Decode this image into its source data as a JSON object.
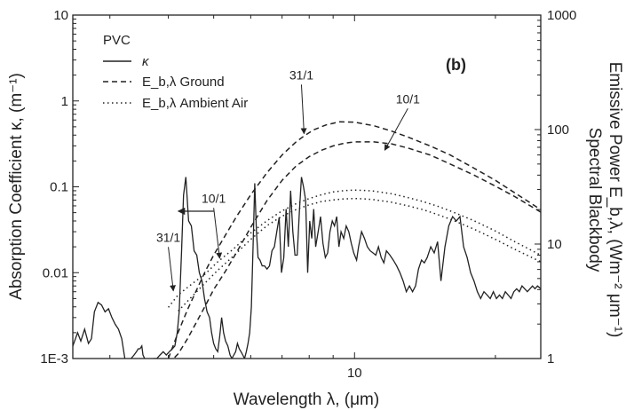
{
  "chart_data": {
    "type": "line",
    "panel_label": "(b)",
    "xlabel": "Wavelength λ, (μm)",
    "ylabel_left": "Absorption Coefficient κ, (m⁻¹)",
    "ylabel_right_line1": "Spectral Blackbody",
    "ylabel_right_line2": "Emissive Power E_b,λ, (Wm⁻² μm⁻¹)",
    "x_scale": "log",
    "xlim": [
      2.5,
      25
    ],
    "xticks": [
      {
        "value": 10,
        "label": "10"
      }
    ],
    "y_left_scale": "log",
    "y_left_lim": [
      0.001,
      10
    ],
    "y_left_ticks": [
      {
        "value": 0.001,
        "label": "1E-3"
      },
      {
        "value": 0.01,
        "label": "0.01"
      },
      {
        "value": 0.1,
        "label": "0.1"
      },
      {
        "value": 1,
        "label": "1"
      },
      {
        "value": 10,
        "label": "10"
      }
    ],
    "y_right_scale": "log",
    "y_right_lim": [
      1,
      1000
    ],
    "y_right_ticks": [
      {
        "value": 1,
        "label": "1"
      },
      {
        "value": 10,
        "label": "10"
      },
      {
        "value": 100,
        "label": "100"
      },
      {
        "value": 1000,
        "label": "1000"
      }
    ],
    "legend": {
      "title": "PVC",
      "placement": "top-left",
      "entries": [
        {
          "label": "κ",
          "style": "solid"
        },
        {
          "label": "E_b,λ Ground",
          "style": "dashed"
        },
        {
          "label": "E_b,λ Ambient Air",
          "style": "dotted"
        }
      ]
    },
    "annotations": [
      {
        "text": "31/1",
        "series": "E_b,λ Ground",
        "label_at": [
          7.7,
          275
        ],
        "arrow_to": [
          7.8,
          92
        ]
      },
      {
        "text": "10/1",
        "series": "E_b,λ Ground",
        "label_at": [
          13.0,
          170
        ],
        "arrow_to": [
          11.6,
          66
        ]
      },
      {
        "text": "10/1",
        "series": "E_b,λ Ambient Air",
        "label_at": [
          5.0,
          23
        ],
        "arrow_to": [
          5.15,
          7.5
        ]
      },
      {
        "text": "31/1",
        "series": "E_b,λ Ambient Air",
        "label_at": [
          4.0,
          10.5
        ],
        "arrow_to": [
          4.1,
          3.9
        ]
      }
    ],
    "arrow_left": {
      "points_to": "left axis",
      "from": [
        5.0,
        0.052
      ],
      "to": [
        4.2,
        0.052
      ]
    },
    "series": [
      {
        "name": "κ",
        "axis": "left",
        "style": "solid",
        "x": [
          2.5,
          2.56,
          2.6,
          2.65,
          2.7,
          2.74,
          2.78,
          2.83,
          2.88,
          2.93,
          2.98,
          3.03,
          3.08,
          3.13,
          3.18,
          3.23,
          3.28,
          3.33,
          3.38,
          3.42,
          3.45,
          3.48,
          3.51,
          3.53,
          3.56,
          3.59,
          3.62,
          3.66,
          3.72,
          3.78,
          3.84,
          3.9,
          3.96,
          4.02,
          4.08,
          4.13,
          4.18,
          4.22,
          4.27,
          4.31,
          4.36,
          4.42,
          4.48,
          4.54,
          4.6,
          4.66,
          4.72,
          4.78,
          4.84,
          4.9,
          4.95,
          5.0,
          5.05,
          5.1,
          5.15,
          5.2,
          5.25,
          5.3,
          5.36,
          5.42,
          5.47,
          5.52,
          5.57,
          5.62,
          5.67,
          5.72,
          5.77,
          5.82,
          5.87,
          5.92,
          5.97,
          6.02,
          6.07,
          6.12,
          6.17,
          6.22,
          6.28,
          6.35,
          6.42,
          6.5,
          6.58,
          6.66,
          6.74,
          6.82,
          6.9,
          6.98,
          7.06,
          7.14,
          7.22,
          7.3,
          7.38,
          7.46,
          7.54,
          7.62,
          7.7,
          7.78,
          7.86,
          7.94,
          8.02,
          8.1,
          8.18,
          8.26,
          8.36,
          8.46,
          8.56,
          8.66,
          8.76,
          8.86,
          8.96,
          9.06,
          9.16,
          9.26,
          9.36,
          9.48,
          9.6,
          9.72,
          9.84,
          9.96,
          10.1,
          10.2,
          10.35,
          10.5,
          10.65,
          10.8,
          10.95,
          11.1,
          11.25,
          11.4,
          11.55,
          11.7,
          11.9,
          12.1,
          12.3,
          12.5,
          12.7,
          12.9,
          13.1,
          13.3,
          13.5,
          13.7,
          13.9,
          14.1,
          14.3,
          14.55,
          14.8,
          15.05,
          15.3,
          15.6,
          15.9,
          16.2,
          16.5,
          16.8,
          17.1,
          17.4,
          17.7,
          18.0,
          18.3,
          18.6,
          18.9,
          19.2,
          19.5,
          19.8,
          20.1,
          20.4,
          20.7,
          21.0,
          21.3,
          21.6,
          21.9,
          22.2,
          22.5,
          22.8,
          23.1,
          23.4,
          23.7,
          24.0,
          24.3,
          24.6,
          25.0
        ],
        "y": [
          0.0014,
          0.002,
          0.0016,
          0.0022,
          0.0015,
          0.0017,
          0.0035,
          0.0045,
          0.0042,
          0.0035,
          0.0038,
          0.003,
          0.0025,
          0.0022,
          0.0017,
          0.001,
          0.0009,
          0.001,
          0.0011,
          0.0012,
          0.0013,
          0.0013,
          0.0014,
          0.0011,
          0.001,
          0.0009,
          0.0009,
          0.0009,
          0.001,
          0.001,
          0.0011,
          0.0012,
          0.0011,
          0.0012,
          0.0013,
          0.0014,
          0.002,
          0.0035,
          0.018,
          0.08,
          0.13,
          0.04,
          0.035,
          0.018,
          0.016,
          0.01,
          0.008,
          0.005,
          0.0035,
          0.003,
          0.002,
          0.0015,
          0.0013,
          0.0012,
          0.0018,
          0.003,
          0.002,
          0.0016,
          0.0014,
          0.0011,
          0.001,
          0.0011,
          0.0012,
          0.0015,
          0.0013,
          0.0012,
          0.0011,
          0.001,
          0.0012,
          0.0015,
          0.002,
          0.004,
          0.02,
          0.11,
          0.03,
          0.015,
          0.014,
          0.012,
          0.012,
          0.011,
          0.012,
          0.018,
          0.02,
          0.03,
          0.044,
          0.01,
          0.015,
          0.055,
          0.02,
          0.09,
          0.03,
          0.016,
          0.016,
          0.05,
          0.13,
          0.1,
          0.07,
          0.01,
          0.04,
          0.025,
          0.055,
          0.02,
          0.03,
          0.045,
          0.022,
          0.015,
          0.017,
          0.03,
          0.04,
          0.035,
          0.045,
          0.02,
          0.03,
          0.025,
          0.035,
          0.03,
          0.022,
          0.017,
          0.014,
          0.02,
          0.03,
          0.025,
          0.02,
          0.018,
          0.017,
          0.016,
          0.02,
          0.015,
          0.013,
          0.018,
          0.016,
          0.014,
          0.012,
          0.01,
          0.008,
          0.006,
          0.007,
          0.006,
          0.007,
          0.011,
          0.014,
          0.013,
          0.015,
          0.02,
          0.017,
          0.023,
          0.008,
          0.02,
          0.035,
          0.045,
          0.04,
          0.045,
          0.02,
          0.015,
          0.01,
          0.008,
          0.006,
          0.005,
          0.006,
          0.0055,
          0.005,
          0.006,
          0.005,
          0.0055,
          0.005,
          0.006,
          0.0055,
          0.005,
          0.006,
          0.0065,
          0.006,
          0.007,
          0.0065,
          0.006,
          0.0065,
          0.007,
          0.0065,
          0.007,
          0.0065
        ]
      },
      {
        "name": "E_b,λ Ground",
        "ratio": "31/1",
        "axis": "right",
        "style": "dashed",
        "x": [
          4.0,
          4.2,
          4.4,
          4.6,
          4.8,
          5.0,
          5.3,
          5.6,
          6.0,
          6.5,
          7.0,
          7.5,
          7.8,
          8.2,
          8.7,
          9.3,
          10.0,
          11.0,
          12.0,
          13.0,
          14.5,
          16.0,
          18.0,
          20.0,
          22.0,
          25.0
        ],
        "y": [
          1.0,
          1.7,
          2.7,
          4.0,
          5.8,
          8.0,
          12.0,
          17.5,
          27.0,
          42.0,
          60.0,
          78.0,
          88.0,
          100.0,
          110.0,
          117.0,
          116.0,
          108.0,
          97.0,
          86.0,
          72.0,
          60.0,
          46.0,
          36.0,
          28.0,
          20.0
        ]
      },
      {
        "name": "E_b,λ Ground",
        "ratio": "10/1",
        "axis": "right",
        "style": "dashed",
        "x": [
          4.0,
          4.2,
          4.4,
          4.6,
          4.8,
          5.0,
          5.3,
          5.6,
          6.0,
          6.5,
          7.0,
          7.5,
          8.0,
          8.5,
          9.0,
          9.5,
          10.0,
          11.0,
          12.0,
          13.0,
          14.5,
          16.0,
          18.0,
          20.0,
          22.0,
          25.0
        ],
        "y": [
          0.9,
          1.1,
          1.5,
          2.1,
          2.9,
          4.0,
          5.8,
          8.5,
          14.0,
          24.0,
          36.0,
          48.0,
          58.0,
          66.0,
          72.0,
          76.0,
          78.0,
          78.0,
          75.0,
          69.0,
          60.0,
          50.0,
          40.0,
          32.0,
          26.0,
          19.0
        ]
      },
      {
        "name": "E_b,λ Ambient Air",
        "ratio": "31/1",
        "axis": "right",
        "style": "dotted",
        "x": [
          4.0,
          4.2,
          4.5,
          4.8,
          5.1,
          5.5,
          6.0,
          6.5,
          7.0,
          7.5,
          8.0,
          8.5,
          9.0,
          9.5,
          10.0,
          10.5,
          11.0,
          12.0,
          13.0,
          14.0,
          15.0,
          16.0,
          18.0,
          20.0,
          22.0,
          25.0
        ],
        "y": [
          2.8,
          3.6,
          4.5,
          5.5,
          7.0,
          9.0,
          12.5,
          16.0,
          19.5,
          22.5,
          25.0,
          27.0,
          28.5,
          29.3,
          29.6,
          29.4,
          29.0,
          27.5,
          25.5,
          23.5,
          21.5,
          19.5,
          16.0,
          13.0,
          10.5,
          8.0
        ]
      },
      {
        "name": "E_b,λ Ambient Air",
        "ratio": "10/1",
        "axis": "right",
        "style": "dotted",
        "x": [
          4.2,
          4.5,
          4.8,
          5.1,
          5.5,
          6.0,
          6.5,
          7.0,
          7.5,
          8.0,
          8.5,
          9.0,
          9.5,
          10.0,
          10.5,
          11.0,
          12.0,
          13.0,
          14.0,
          15.0,
          16.0,
          18.0,
          20.0,
          22.0,
          25.0
        ],
        "y": [
          2.6,
          3.5,
          4.6,
          5.9,
          7.8,
          11.0,
          14.5,
          17.5,
          20.0,
          22.0,
          23.5,
          24.3,
          24.8,
          25.0,
          24.8,
          24.4,
          23.2,
          21.6,
          20.0,
          18.2,
          16.5,
          13.5,
          11.0,
          9.0,
          7.0
        ]
      }
    ]
  }
}
